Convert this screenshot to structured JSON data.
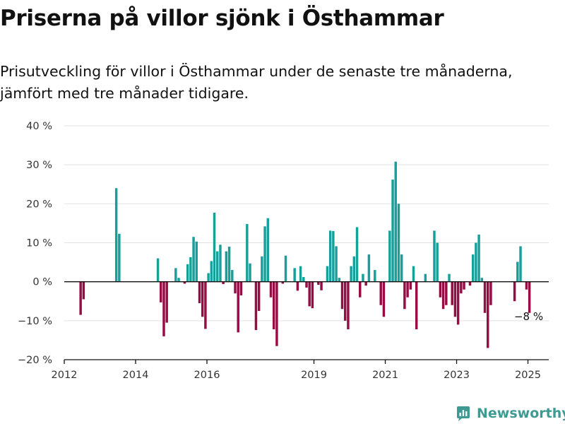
{
  "header": {
    "title": "Priserna på villor sjönk i Östhammar",
    "subtitle": "Prisutveckling för villor i Östhammar under de senaste tre månaderna, jämfört med tre månader tidigare."
  },
  "brand": {
    "name": "Newsworthy",
    "logo_icon": "newsworthy-logo-icon"
  },
  "colors": {
    "positive": "#17a09a",
    "negative": "#960c44",
    "grid": "#e2e2e2",
    "axis": "#111111"
  },
  "chart_data": {
    "type": "bar",
    "title": "Priserna på villor sjönk i Östhammar",
    "subtitle": "Prisutveckling för villor i Östhammar under de senaste tre månaderna, jämfört med tre månader tidigare.",
    "xlabel": "",
    "ylabel": "",
    "x_type": "date",
    "x_range": [
      "2012-01",
      "2025-08"
    ],
    "ylim": [
      -20,
      40
    ],
    "y_ticks": [
      -20,
      -10,
      0,
      10,
      20,
      30,
      40
    ],
    "y_tick_labels": [
      "−20 %",
      "−10 %",
      "0 %",
      "10 %",
      "20 %",
      "30 %",
      "40 %"
    ],
    "x_ticks": [
      "2012-01",
      "2014-01",
      "2016-01",
      "2019-01",
      "2021-01",
      "2023-01",
      "2025-01"
    ],
    "x_tick_labels": [
      "2012",
      "2014",
      "2016",
      "2019",
      "2021",
      "2023",
      "2025"
    ],
    "grid": true,
    "unit": "%",
    "annotation": {
      "date": "2025-01",
      "value": -8,
      "label": "−8 %"
    },
    "series": [
      {
        "points": [
          {
            "date": "2012-06",
            "value": -8.5
          },
          {
            "date": "2012-07",
            "value": -4.5
          },
          {
            "date": "2013-06",
            "value": 24
          },
          {
            "date": "2013-07",
            "value": 12.3
          },
          {
            "date": "2014-08",
            "value": 6
          },
          {
            "date": "2014-09",
            "value": -5.3
          },
          {
            "date": "2014-10",
            "value": -14
          },
          {
            "date": "2014-11",
            "value": -10.5
          },
          {
            "date": "2015-02",
            "value": 3.5
          },
          {
            "date": "2015-03",
            "value": 1
          },
          {
            "date": "2015-05",
            "value": -0.5
          },
          {
            "date": "2015-06",
            "value": 4.5
          },
          {
            "date": "2015-07",
            "value": 6.3
          },
          {
            "date": "2015-08",
            "value": 11.5
          },
          {
            "date": "2015-09",
            "value": 10.3
          },
          {
            "date": "2015-10",
            "value": -5.5
          },
          {
            "date": "2015-11",
            "value": -9
          },
          {
            "date": "2015-12",
            "value": -12.1
          },
          {
            "date": "2016-01",
            "value": 2.2
          },
          {
            "date": "2016-02",
            "value": 5.3
          },
          {
            "date": "2016-03",
            "value": 17.7
          },
          {
            "date": "2016-04",
            "value": 7.8
          },
          {
            "date": "2016-05",
            "value": 9.5
          },
          {
            "date": "2016-06",
            "value": -0.6
          },
          {
            "date": "2016-07",
            "value": 7.8
          },
          {
            "date": "2016-08",
            "value": 9
          },
          {
            "date": "2016-09",
            "value": 3
          },
          {
            "date": "2016-10",
            "value": -3
          },
          {
            "date": "2016-11",
            "value": -13
          },
          {
            "date": "2016-12",
            "value": -3.5
          },
          {
            "date": "2017-02",
            "value": 14.8
          },
          {
            "date": "2017-03",
            "value": 4.7
          },
          {
            "date": "2017-05",
            "value": -12.4
          },
          {
            "date": "2017-06",
            "value": -7.5
          },
          {
            "date": "2017-07",
            "value": 6.5
          },
          {
            "date": "2017-08",
            "value": 14.2
          },
          {
            "date": "2017-09",
            "value": 16.3
          },
          {
            "date": "2017-10",
            "value": -4
          },
          {
            "date": "2017-11",
            "value": -12.2
          },
          {
            "date": "2017-12",
            "value": -16.5
          },
          {
            "date": "2018-02",
            "value": -0.5
          },
          {
            "date": "2018-03",
            "value": 6.7
          },
          {
            "date": "2018-06",
            "value": 3.5
          },
          {
            "date": "2018-07",
            "value": -2.3
          },
          {
            "date": "2018-08",
            "value": 4
          },
          {
            "date": "2018-09",
            "value": 1.2
          },
          {
            "date": "2018-10",
            "value": -1.5
          },
          {
            "date": "2018-11",
            "value": -6.3
          },
          {
            "date": "2018-12",
            "value": -6.8
          },
          {
            "date": "2019-02",
            "value": -0.8
          },
          {
            "date": "2019-03",
            "value": -2.2
          },
          {
            "date": "2019-05",
            "value": 4
          },
          {
            "date": "2019-06",
            "value": 13.1
          },
          {
            "date": "2019-07",
            "value": 13
          },
          {
            "date": "2019-08",
            "value": 9.1
          },
          {
            "date": "2019-09",
            "value": 1
          },
          {
            "date": "2019-10",
            "value": -7
          },
          {
            "date": "2019-11",
            "value": -10
          },
          {
            "date": "2019-12",
            "value": -12.2
          },
          {
            "date": "2020-01",
            "value": 4
          },
          {
            "date": "2020-02",
            "value": 6.5
          },
          {
            "date": "2020-03",
            "value": 14
          },
          {
            "date": "2020-04",
            "value": -4
          },
          {
            "date": "2020-05",
            "value": 2
          },
          {
            "date": "2020-06",
            "value": -1
          },
          {
            "date": "2020-07",
            "value": 7
          },
          {
            "date": "2020-09",
            "value": 3
          },
          {
            "date": "2020-11",
            "value": -6
          },
          {
            "date": "2020-12",
            "value": -9
          },
          {
            "date": "2021-02",
            "value": 13.1
          },
          {
            "date": "2021-03",
            "value": 26.2
          },
          {
            "date": "2021-04",
            "value": 30.8
          },
          {
            "date": "2021-05",
            "value": 20
          },
          {
            "date": "2021-06",
            "value": 7
          },
          {
            "date": "2021-07",
            "value": -7
          },
          {
            "date": "2021-08",
            "value": -4
          },
          {
            "date": "2021-09",
            "value": -2
          },
          {
            "date": "2021-10",
            "value": 4
          },
          {
            "date": "2021-11",
            "value": -12.2
          },
          {
            "date": "2022-02",
            "value": 2
          },
          {
            "date": "2022-05",
            "value": 13.1
          },
          {
            "date": "2022-06",
            "value": 10
          },
          {
            "date": "2022-07",
            "value": -4
          },
          {
            "date": "2022-08",
            "value": -7
          },
          {
            "date": "2022-09",
            "value": -6
          },
          {
            "date": "2022-10",
            "value": 2
          },
          {
            "date": "2022-11",
            "value": -6
          },
          {
            "date": "2022-12",
            "value": -9
          },
          {
            "date": "2023-01",
            "value": -11
          },
          {
            "date": "2023-02",
            "value": -3
          },
          {
            "date": "2023-03",
            "value": -2
          },
          {
            "date": "2023-05",
            "value": -1
          },
          {
            "date": "2023-06",
            "value": 7
          },
          {
            "date": "2023-07",
            "value": 10
          },
          {
            "date": "2023-08",
            "value": 12.1
          },
          {
            "date": "2023-09",
            "value": 1
          },
          {
            "date": "2023-10",
            "value": -8
          },
          {
            "date": "2023-11",
            "value": -17
          },
          {
            "date": "2023-12",
            "value": -6
          },
          {
            "date": "2024-08",
            "value": -5
          },
          {
            "date": "2024-09",
            "value": 5.1
          },
          {
            "date": "2024-10",
            "value": 9.1
          },
          {
            "date": "2024-12",
            "value": -2
          },
          {
            "date": "2025-01",
            "value": -8
          }
        ]
      }
    ]
  }
}
